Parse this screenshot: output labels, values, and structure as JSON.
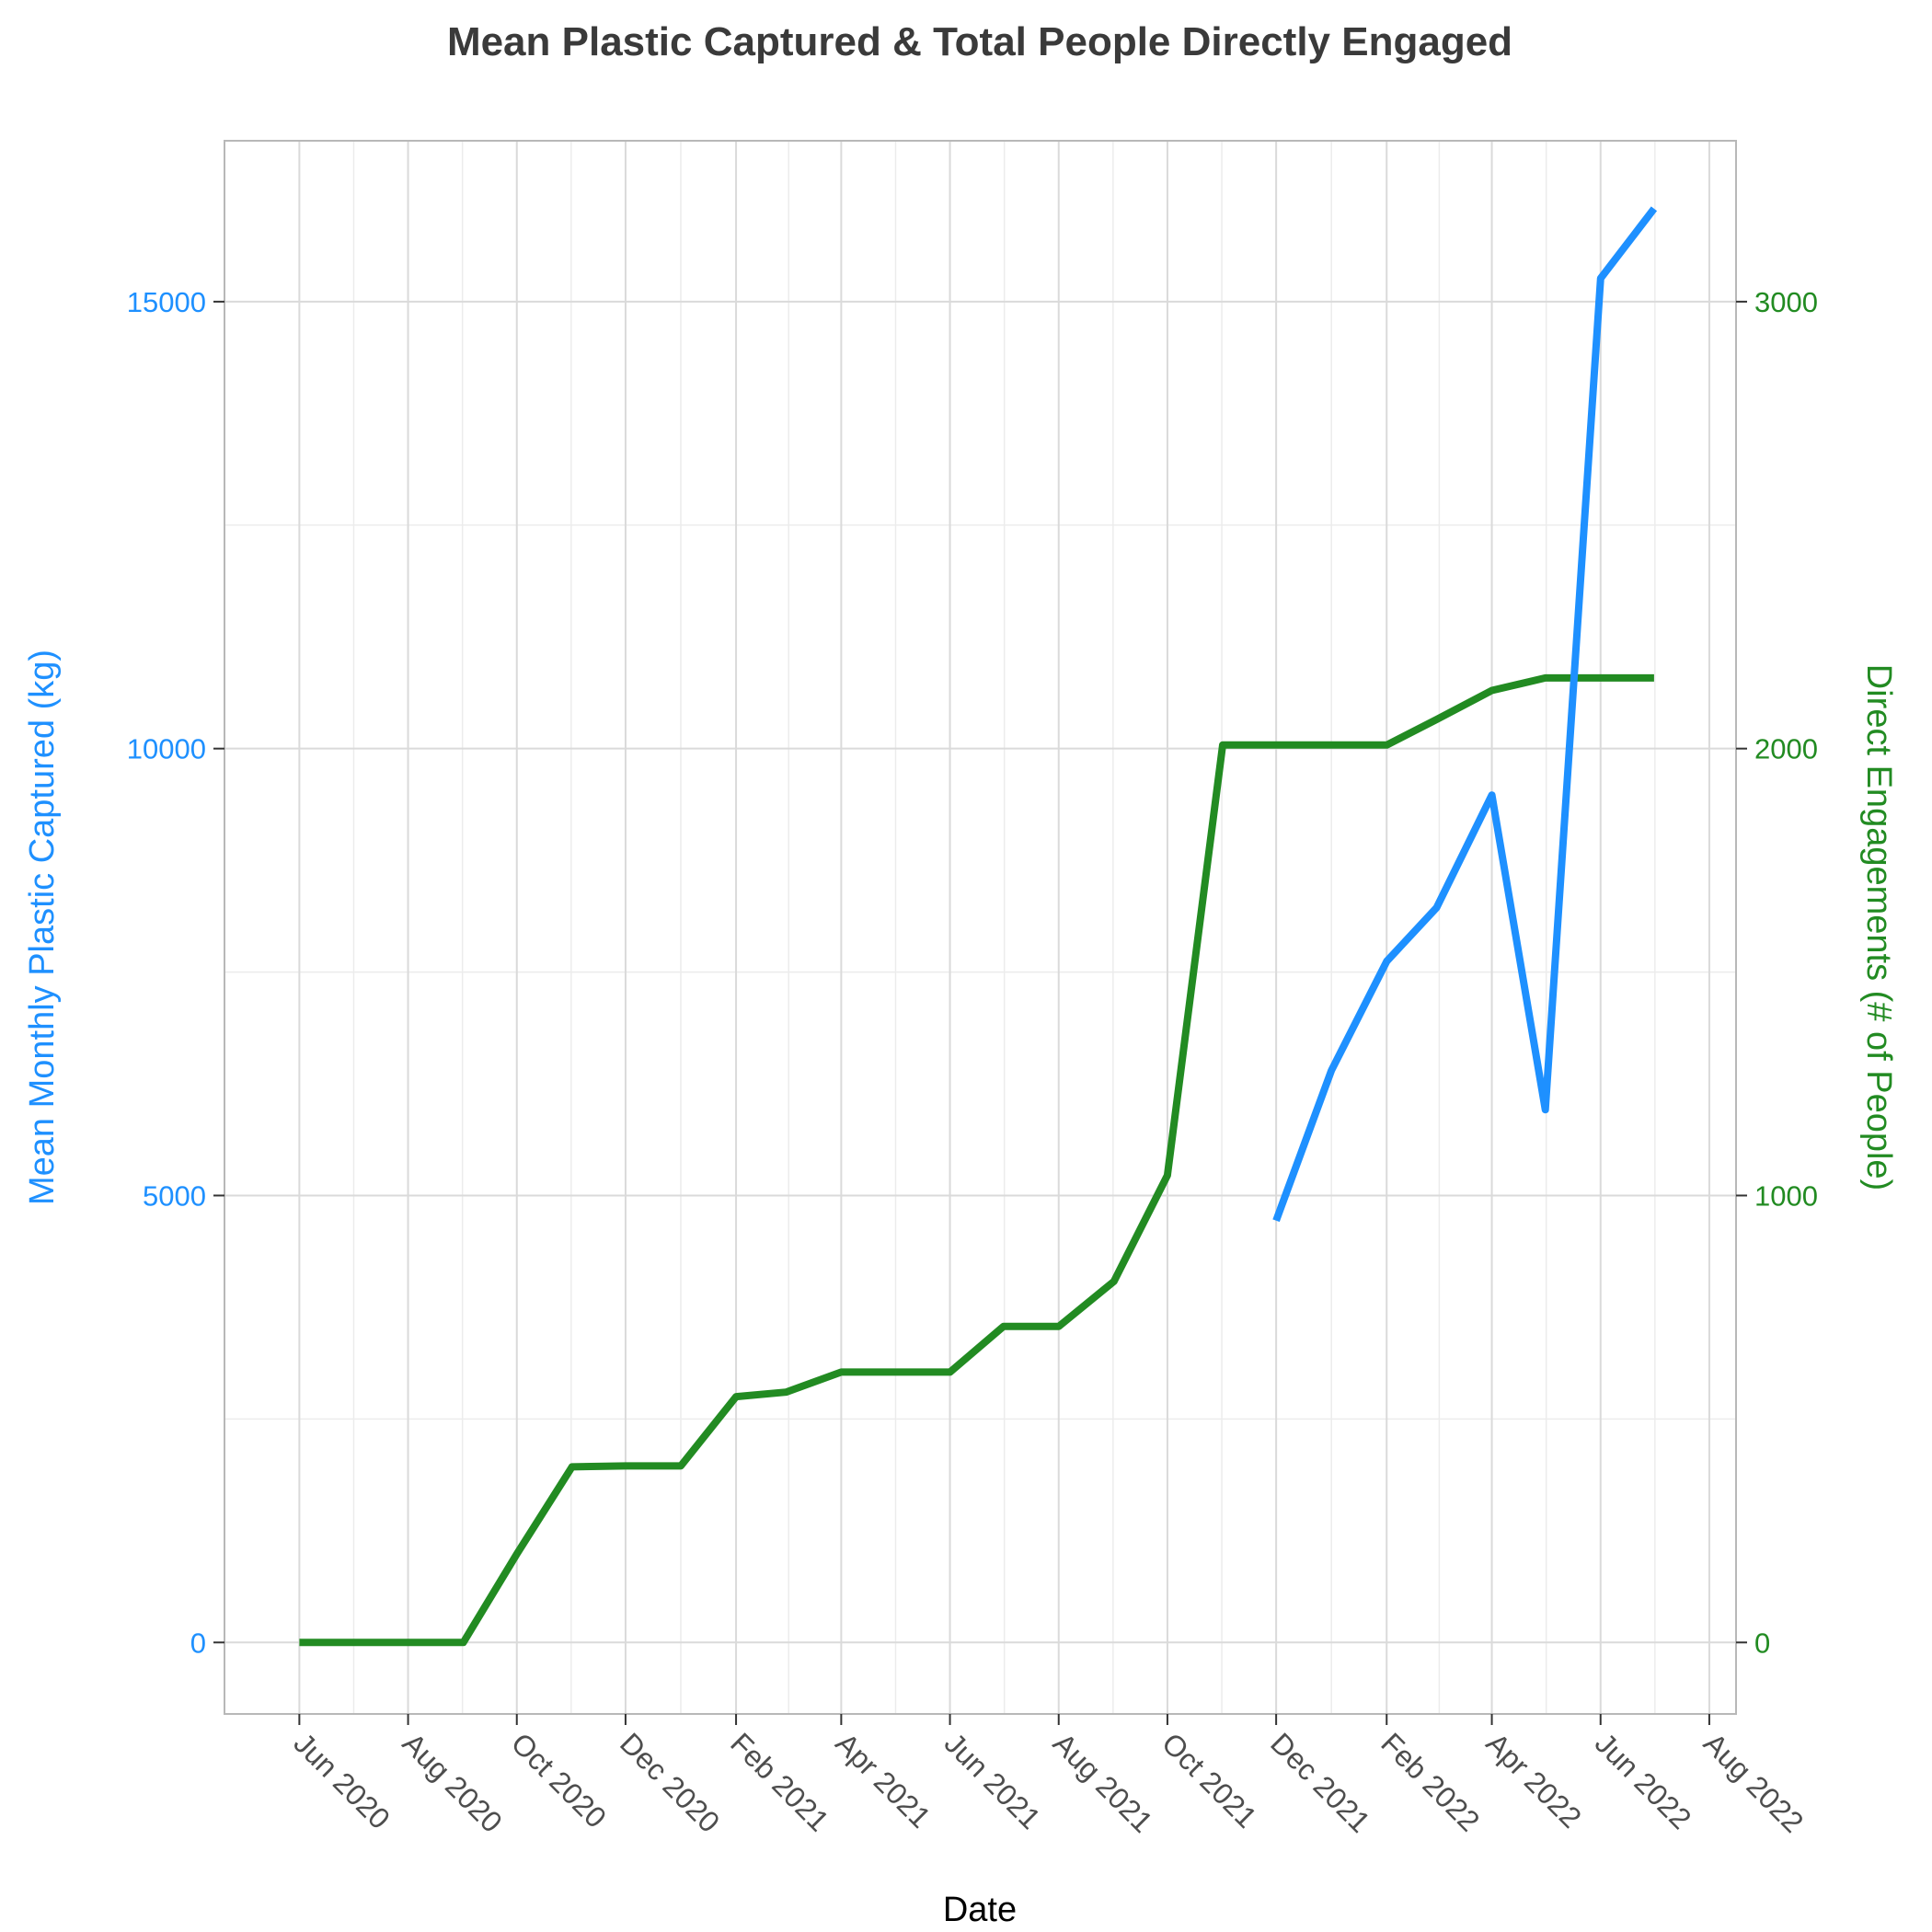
{
  "chart_data": {
    "type": "line",
    "title": "Mean Plastic Captured & Total People Directly Engaged",
    "xlabel": "Date",
    "ylabel_left": "Mean Monthly Plastic Captured (kg)",
    "ylabel_right": "Direct Engagements (# of People)",
    "colors": {
      "plastic": "#1e90ff",
      "engagement": "#228b22"
    },
    "x_ticks": [
      "Jun 2020",
      "Aug 2020",
      "Oct 2020",
      "Dec 2020",
      "Feb 2021",
      "Apr 2021",
      "Jun 2021",
      "Aug 2021",
      "Oct 2021",
      "Dec 2021",
      "Feb 2022",
      "Apr 2022",
      "Jun 2022",
      "Aug 2022"
    ],
    "y_left_ticks": [
      "0",
      "5000",
      "10000",
      "15000"
    ],
    "y_right_ticks": [
      "0",
      "1000",
      "2000",
      "3000"
    ],
    "y_left_range": [
      -800,
      16800
    ],
    "y_right_range": [
      -160,
      3360
    ],
    "x_range": [
      "2020-04-20",
      "2022-08-16"
    ],
    "grid": true,
    "series": [
      {
        "key": "engagement",
        "axis": "right",
        "points": [
          [
            "2020-06-01",
            0
          ],
          [
            "2020-07-01",
            0
          ],
          [
            "2020-08-01",
            0
          ],
          [
            "2020-09-01",
            0
          ],
          [
            "2020-10-01",
            198
          ],
          [
            "2020-11-01",
            393
          ],
          [
            "2020-12-01",
            395
          ],
          [
            "2021-01-01",
            395
          ],
          [
            "2021-02-01",
            550
          ],
          [
            "2021-03-01",
            560
          ],
          [
            "2021-04-01",
            605
          ],
          [
            "2021-05-01",
            605
          ],
          [
            "2021-06-01",
            605
          ],
          [
            "2021-07-01",
            707
          ],
          [
            "2021-08-01",
            707
          ],
          [
            "2021-09-01",
            808
          ],
          [
            "2021-10-01",
            1045
          ],
          [
            "2021-11-01",
            2008
          ],
          [
            "2021-12-01",
            2008
          ],
          [
            "2022-01-01",
            2008
          ],
          [
            "2022-02-01",
            2008
          ],
          [
            "2022-03-01",
            2065
          ],
          [
            "2022-04-01",
            2130
          ],
          [
            "2022-05-01",
            2158
          ],
          [
            "2022-06-01",
            2158
          ],
          [
            "2022-07-01",
            2158
          ]
        ]
      },
      {
        "key": "plastic",
        "axis": "left",
        "points": [
          [
            "2021-12-01",
            4720
          ],
          [
            "2022-01-01",
            6400
          ],
          [
            "2022-02-01",
            7620
          ],
          [
            "2022-03-01",
            8220
          ],
          [
            "2022-04-01",
            9480
          ],
          [
            "2022-05-01",
            5960
          ],
          [
            "2022-06-01",
            15260
          ],
          [
            "2022-07-01",
            16040
          ]
        ]
      }
    ]
  }
}
